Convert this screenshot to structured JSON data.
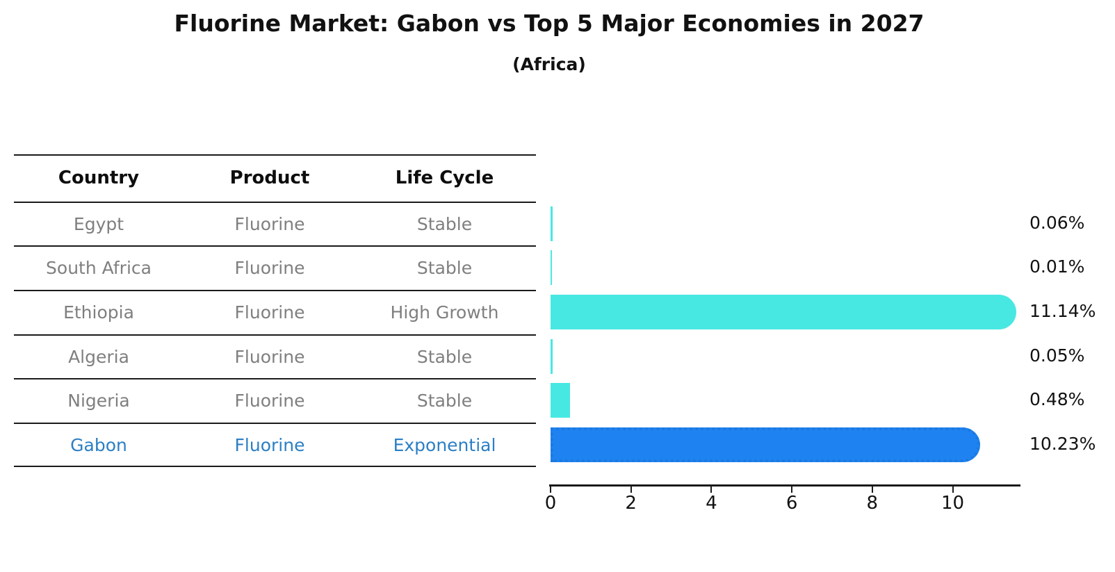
{
  "title": "Fluorine Market: Gabon vs Top 5 Major Economies in 2027",
  "subtitle": "(Africa)",
  "table": {
    "headers": [
      "Country",
      "Product",
      "Life Cycle"
    ],
    "rows": [
      {
        "country": "Egypt",
        "product": "Fluorine",
        "life_cycle": "Stable",
        "share": "0.06%"
      },
      {
        "country": "South Africa",
        "product": "Fluorine",
        "life_cycle": "Stable",
        "share": "0.01%"
      },
      {
        "country": "Ethiopia",
        "product": "Fluorine",
        "life_cycle": "High Growth",
        "share": "11.14%"
      },
      {
        "country": "Algeria",
        "product": "Fluorine",
        "life_cycle": "Stable",
        "share": "0.05%"
      },
      {
        "country": "Nigeria",
        "product": "Fluorine",
        "life_cycle": "Stable",
        "share": "0.48%"
      },
      {
        "country": "Gabon",
        "product": "Fluorine",
        "life_cycle": "Exponential",
        "share": "10.23%"
      }
    ]
  },
  "chart_data": {
    "type": "bar",
    "orientation": "horizontal",
    "title": "Fluorine Market: Gabon vs Top 5 Major Economies in 2027",
    "subtitle": "(Africa)",
    "categories": [
      "Egypt",
      "South Africa",
      "Ethiopia",
      "Algeria",
      "Nigeria",
      "Gabon"
    ],
    "values": [
      0.06,
      0.01,
      11.14,
      0.05,
      0.48,
      10.23
    ],
    "value_labels": [
      "0.06%",
      "0.01%",
      "11.14%",
      "0.05%",
      "0.48%",
      "10.23%"
    ],
    "xlabel": "",
    "ylabel": "",
    "xlim": [
      0,
      11.7
    ],
    "x_ticks": [
      0,
      2,
      4,
      6,
      8,
      10
    ],
    "grid": false,
    "legend": false,
    "highlight_index": 5,
    "bar_color_default": "#48e8e2",
    "bar_color_highlight": "#1e82f0",
    "highlight_border_color": "#1b79e0",
    "highlight_text_color": "#2b7fc4",
    "axis_color": "#1a1a1a",
    "row_text_color": "#7f7f7f"
  }
}
